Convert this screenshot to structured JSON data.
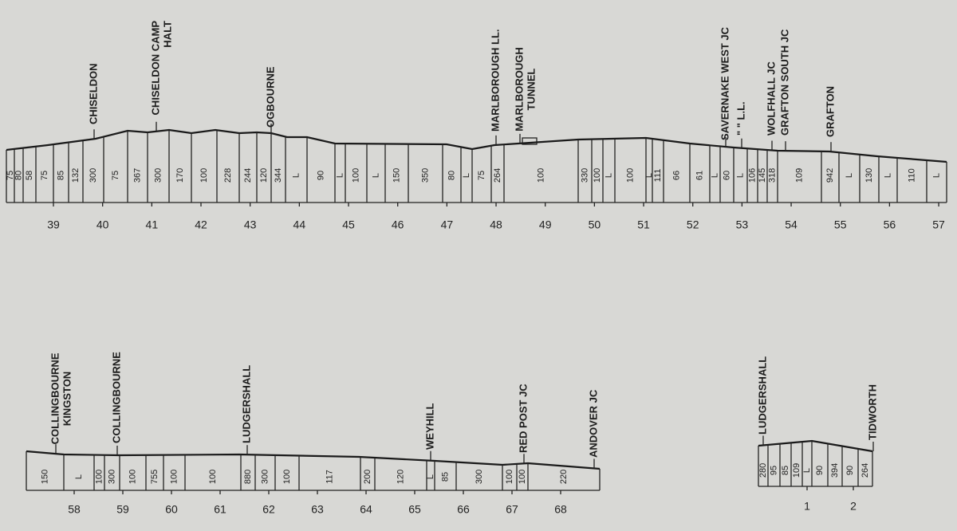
{
  "profiles": [
    {
      "stations": [
        {
          "lines": [
            "CHISELDON"
          ]
        },
        {
          "lines": [
            "CHISELDON CAMP",
            "HALT"
          ]
        },
        {
          "lines": [
            "OGBOURNE"
          ]
        },
        {
          "lines": [
            "MARLBOROUGH LL."
          ]
        },
        {
          "lines": [
            "MARLBOROUGH",
            "TUNNEL"
          ]
        },
        {
          "lines": [
            "SAVERNAKE WEST JC"
          ]
        },
        {
          "lines": [
            "\"  \"  L.L."
          ]
        },
        {
          "lines": [
            "WOLFHALL JC"
          ]
        },
        {
          "lines": [
            "GRAFTON SOUTH JC"
          ]
        },
        {
          "lines": [
            "GRAFTON"
          ]
        }
      ],
      "gradients": [
        "75",
        "80",
        "58",
        "75",
        "85",
        "132",
        "300",
        "75",
        "367",
        "300",
        "170",
        "100",
        "228",
        "244",
        "120",
        "344",
        "L",
        "90",
        "L",
        "100",
        "L",
        "150",
        "350",
        "80",
        "L",
        "75",
        "264",
        "100",
        "330",
        "100",
        "L",
        "100",
        "L",
        "111",
        "66",
        "61",
        "L",
        "60",
        "L",
        "106",
        "145",
        "318",
        "109",
        "942",
        "L",
        "130",
        "L",
        "110",
        "L"
      ],
      "mileposts": [
        39,
        40,
        41,
        42,
        43,
        44,
        45,
        46,
        47,
        48,
        49,
        50,
        51,
        52,
        53,
        54,
        55,
        56,
        57
      ]
    },
    {
      "stations": [
        {
          "lines": [
            "COLLINGBOURNE",
            "KINGSTON"
          ]
        },
        {
          "lines": [
            "COLLINGBOURNE"
          ]
        },
        {
          "lines": [
            "LUDGERSHALL"
          ]
        },
        {
          "lines": [
            "WEYHILL"
          ]
        },
        {
          "lines": [
            "RED POST  JC"
          ]
        },
        {
          "lines": [
            "ANDOVER JC"
          ]
        }
      ],
      "gradients": [
        "150",
        "L",
        "100",
        "300",
        "100",
        "755",
        "100",
        "100",
        "880",
        "300",
        "100",
        "117",
        "200",
        "120",
        "L",
        "85",
        "300",
        "100",
        "100",
        "220"
      ],
      "mileposts": [
        58,
        59,
        60,
        61,
        62,
        63,
        64,
        65,
        66,
        67,
        68
      ]
    },
    {
      "stations": [
        {
          "lines": [
            "LUDGERSHALL"
          ]
        },
        {
          "lines": [
            "TIDWORTH"
          ]
        }
      ],
      "gradients": [
        "280",
        "95",
        "85",
        "109",
        "L",
        "90",
        "394",
        "90",
        "264"
      ],
      "mileposts": [
        1,
        2
      ]
    }
  ]
}
